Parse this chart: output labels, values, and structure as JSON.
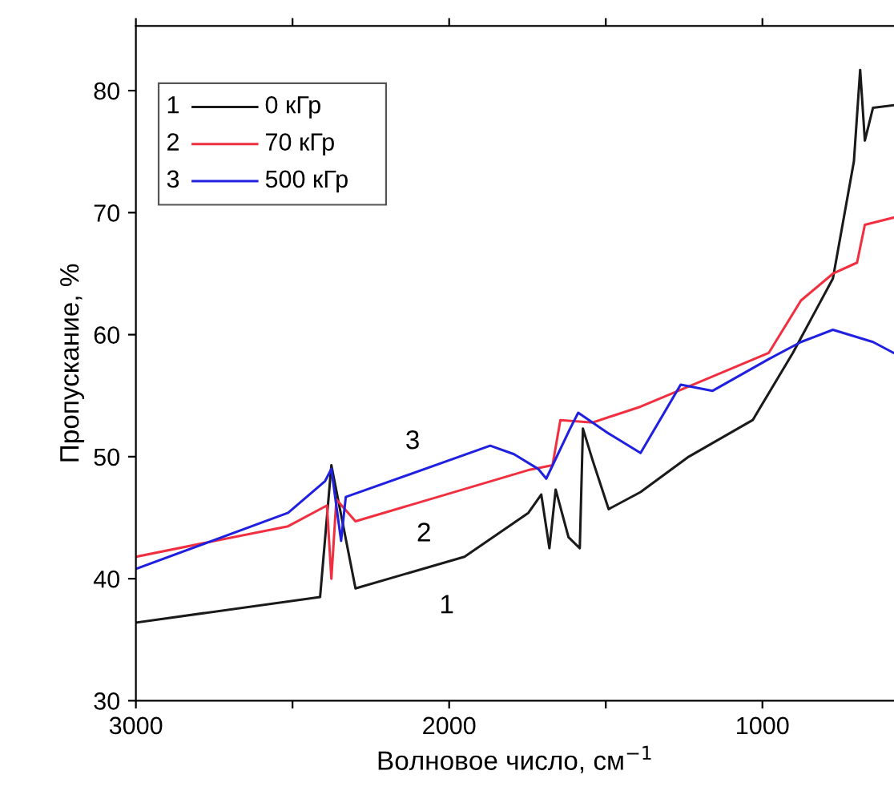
{
  "chart_data": {
    "type": "line",
    "xlabel": "Волновое число, см$^{−1}$",
    "ylabel": "Пропускание, %",
    "xlim": [
      3000,
      580
    ],
    "ylim": [
      30,
      85.3
    ],
    "xticks": [
      3000,
      {
        "value": 2500,
        "label": null
      },
      2000,
      {
        "value": 1500,
        "label": null
      },
      1000
    ],
    "yticks": [
      30,
      40,
      50,
      60,
      70,
      80
    ],
    "grid": false,
    "legend": "top left",
    "line_style": "solid",
    "marker": "none",
    "series": [
      {
        "name": "0 кГр",
        "color": "#1a1a1a",
        "x": [
          3000,
          2412,
          2376,
          2299,
          1951,
          1747,
          1706,
          1680,
          1660,
          1619,
          1583,
          1573,
          1542,
          1491,
          1389,
          1235,
          1031,
          903,
          775,
          708,
          688,
          673,
          647,
          581
        ],
        "values": [
          36.4,
          38.5,
          49.3,
          39.2,
          41.8,
          45.4,
          46.9,
          42.5,
          47.3,
          43.4,
          42.5,
          52.3,
          49.7,
          45.7,
          47.1,
          50.0,
          53.0,
          58.5,
          64.6,
          74.2,
          81.7,
          75.9,
          78.6,
          78.8
        ]
      },
      {
        "name": "70 кГр",
        "color": "#f03040",
        "x": [
          3000,
          2514,
          2390,
          2376,
          2360,
          2299,
          1747,
          1670,
          1645,
          1542,
          1389,
          1184,
          980,
          877,
          775,
          698,
          673,
          581
        ],
        "values": [
          41.8,
          44.3,
          46.0,
          40.0,
          46.5,
          44.7,
          48.9,
          49.3,
          53.0,
          52.8,
          54.1,
          56.3,
          58.5,
          62.8,
          65.0,
          65.9,
          69.0,
          69.6
        ]
      },
      {
        "name": "500 кГр",
        "color": "#2020e0",
        "x": [
          3000,
          2514,
          2396,
          2376,
          2345,
          2330,
          1869,
          1793,
          1716,
          1690,
          1614,
          1588,
          1491,
          1389,
          1261,
          1159,
          980,
          877,
          775,
          647,
          581
        ],
        "values": [
          40.8,
          45.4,
          48.0,
          49.0,
          43.1,
          46.7,
          50.9,
          50.2,
          49.0,
          48.2,
          52.3,
          53.6,
          51.9,
          50.3,
          55.9,
          55.4,
          58.0,
          59.4,
          60.4,
          59.4,
          58.5
        ]
      }
    ],
    "annotations": [
      "1",
      "2",
      "3"
    ]
  }
}
